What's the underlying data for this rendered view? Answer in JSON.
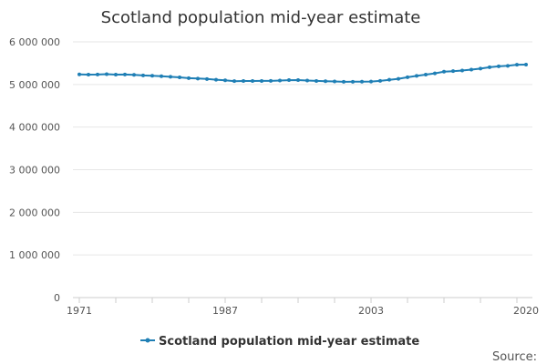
{
  "colors": {
    "series": "#1f7fb5",
    "text": "#333333"
  },
  "chart_data": {
    "type": "line",
    "title": "Scotland population mid-year estimate",
    "xlabel": "",
    "ylabel": "",
    "ylim": [
      0,
      6000000
    ],
    "xlim": [
      1971,
      2020
    ],
    "yticks": [
      0,
      1000000,
      2000000,
      3000000,
      4000000,
      5000000,
      6000000
    ],
    "ytick_labels": [
      "0",
      "1 000 000",
      "2 000 000",
      "3 000 000",
      "4 000 000",
      "5 000 000",
      "6 000 000"
    ],
    "xticks": [
      1971,
      1975,
      1979,
      1983,
      1987,
      1991,
      1995,
      1999,
      2003,
      2007,
      2011,
      2015,
      2019
    ],
    "xtick_labels": [
      {
        "year": 1971,
        "label": "1971"
      },
      {
        "year": 1987,
        "label": "1987"
      },
      {
        "year": 2003,
        "label": "2003"
      },
      {
        "year": 2020,
        "label": "2020"
      }
    ],
    "legend_position": "bottom",
    "series": [
      {
        "name": "Scotland population mid-year estimate",
        "x": [
          1971,
          1972,
          1973,
          1974,
          1975,
          1976,
          1977,
          1978,
          1979,
          1980,
          1981,
          1982,
          1983,
          1984,
          1985,
          1986,
          1987,
          1988,
          1989,
          1990,
          1991,
          1992,
          1993,
          1994,
          1995,
          1996,
          1997,
          1998,
          1999,
          2000,
          2001,
          2002,
          2003,
          2004,
          2005,
          2006,
          2007,
          2008,
          2009,
          2010,
          2011,
          2012,
          2013,
          2014,
          2015,
          2016,
          2017,
          2018,
          2019,
          2020
        ],
        "values": [
          5236000,
          5231000,
          5233000,
          5241000,
          5232000,
          5233000,
          5226000,
          5212000,
          5204000,
          5194000,
          5180000,
          5167000,
          5148000,
          5139000,
          5128000,
          5112000,
          5099000,
          5078000,
          5081000,
          5081000,
          5083000,
          5085000,
          5092000,
          5102000,
          5104000,
          5092000,
          5083000,
          5077000,
          5072000,
          5063000,
          5064000,
          5066000,
          5068000,
          5084000,
          5110000,
          5133000,
          5170000,
          5202000,
          5231000,
          5262000,
          5300000,
          5313000,
          5328000,
          5348000,
          5373000,
          5405000,
          5425000,
          5438000,
          5463000,
          5466000
        ]
      }
    ]
  },
  "source": {
    "label": "Source:"
  }
}
